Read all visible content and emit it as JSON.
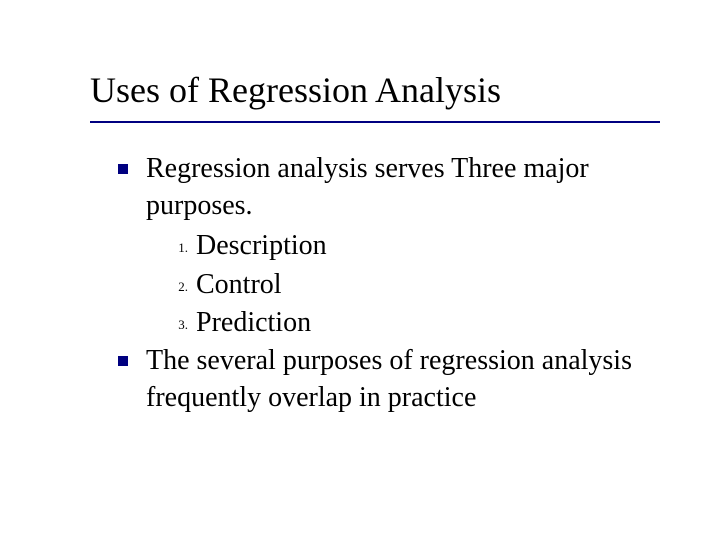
{
  "colors": {
    "accent": "#000080",
    "text": "#000000",
    "background": "#ffffff"
  },
  "title": "Uses of Regression Analysis",
  "bullets": [
    {
      "text": "Regression analysis serves Three major purposes.",
      "sublist": [
        {
          "num": "1.",
          "text": "Description"
        },
        {
          "num": "2.",
          "text": "Control"
        },
        {
          "num": "3.",
          "text": "Prediction"
        }
      ]
    },
    {
      "text": "The several purposes of regression analysis frequently overlap in practice",
      "sublist": []
    }
  ]
}
